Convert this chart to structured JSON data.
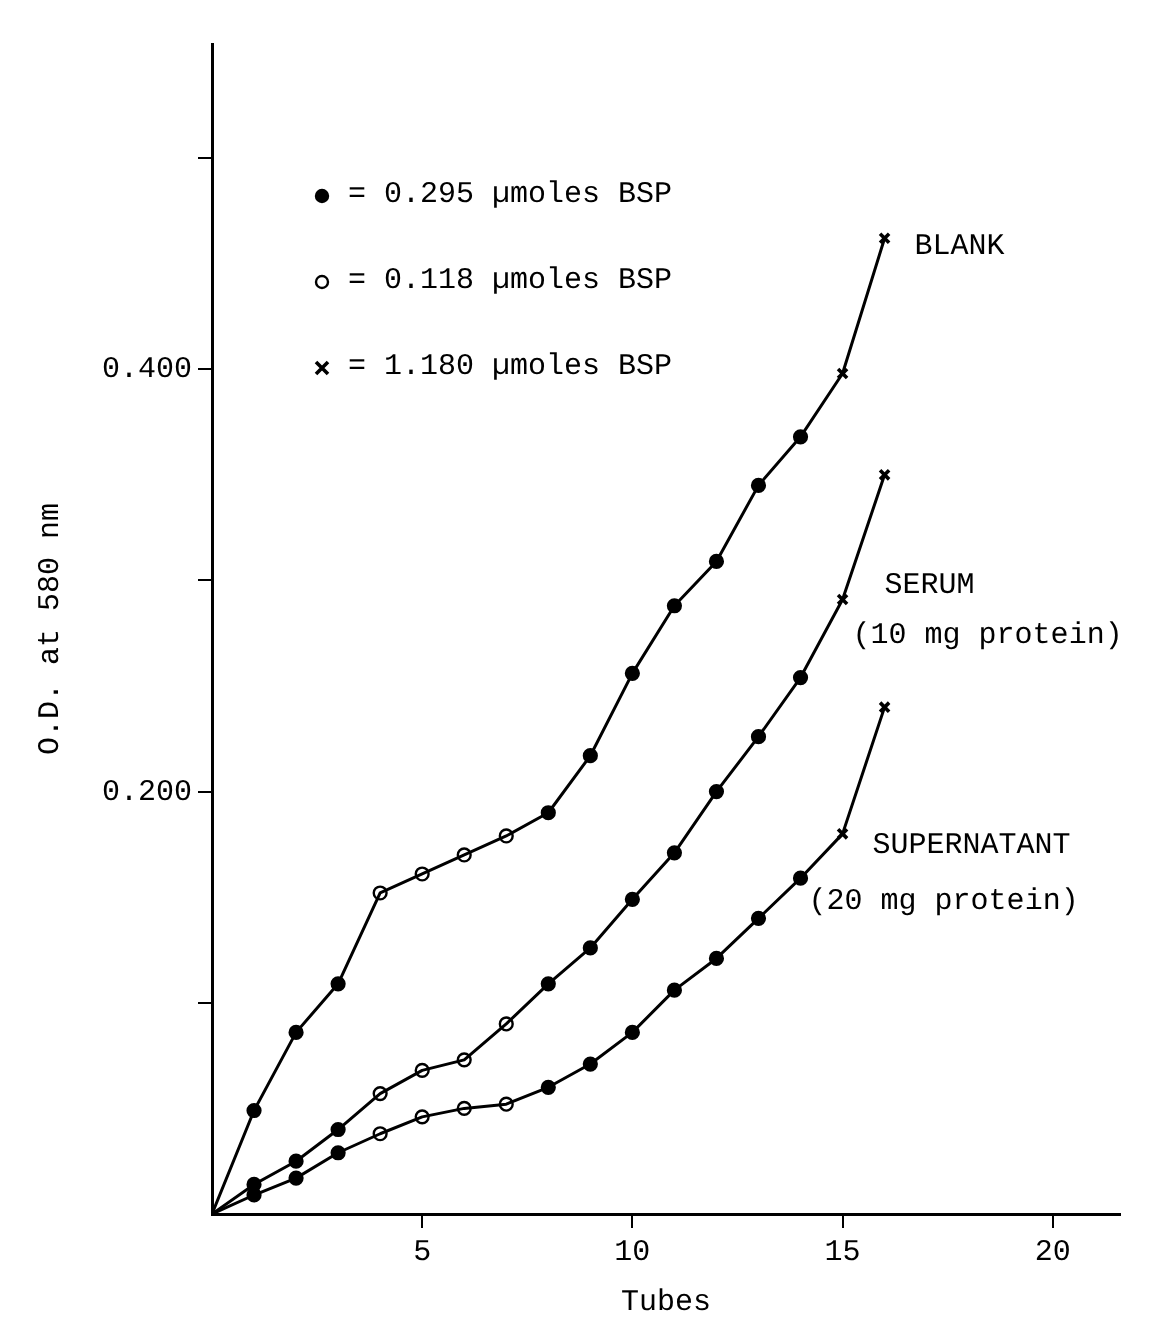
{
  "chart_data": {
    "type": "line",
    "xlabel": "Tubes",
    "ylabel": "O.D. at 580 nm",
    "x": [
      0,
      1,
      2,
      3,
      4,
      5,
      6,
      7,
      8,
      9,
      10,
      11,
      12,
      13,
      14,
      15,
      16
    ],
    "series": [
      {
        "name": "BLANK",
        "color": "#000000",
        "marker": "none",
        "values": [
          0,
          0.049,
          0.086,
          0.109,
          0.152,
          0.161,
          0.17,
          0.179,
          0.19,
          0.217,
          0.256,
          0.288,
          0.309,
          0.345,
          0.368,
          0.398,
          0.462
        ]
      },
      {
        "name": "SERUM\n(10 mg protein)",
        "color": "#000000",
        "marker": "none",
        "values": [
          0,
          0.014,
          0.025,
          0.04,
          0.057,
          0.068,
          0.073,
          0.09,
          0.109,
          0.126,
          0.149,
          0.171,
          0.2,
          0.226,
          0.254,
          0.291,
          0.35
        ]
      },
      {
        "name": "SUPERNATANT\n(20 mg protein)",
        "color": "#000000",
        "marker": "none",
        "values": [
          0,
          0.009,
          0.017,
          0.029,
          0.038,
          0.046,
          0.05,
          0.052,
          0.06,
          0.071,
          0.086,
          0.106,
          0.121,
          0.14,
          0.159,
          0.18,
          0.24
        ]
      },
      {
        "type": "scatter",
        "name": "= 0.295 µmoles BSP",
        "color": "#000000",
        "marker": "circle",
        "x": [
          1,
          2,
          3,
          8,
          9,
          10,
          11,
          12,
          13,
          14,
          1,
          2,
          3,
          8,
          9,
          10,
          11,
          12,
          13,
          14,
          1,
          2,
          3,
          8,
          9,
          10,
          11,
          12,
          13,
          14
        ],
        "values": [
          0.049,
          0.086,
          0.109,
          0.19,
          0.217,
          0.256,
          0.288,
          0.309,
          0.345,
          0.368,
          0.014,
          0.025,
          0.04,
          0.109,
          0.126,
          0.149,
          0.171,
          0.2,
          0.226,
          0.254,
          0.009,
          0.017,
          0.029,
          0.06,
          0.071,
          0.086,
          0.106,
          0.121,
          0.14,
          0.159
        ]
      },
      {
        "type": "scatter",
        "name": "= 0.118 µmoles BSP",
        "color": "#ffffff",
        "marker": "circle",
        "x": [
          4,
          5,
          6,
          7,
          4,
          5,
          6,
          7,
          4,
          5,
          6,
          7
        ],
        "values": [
          0.152,
          0.161,
          0.17,
          0.179,
          0.057,
          0.068,
          0.073,
          0.09,
          0.038,
          0.046,
          0.05,
          0.052
        ]
      },
      {
        "type": "scatter",
        "name": "= 1.180 µmoles BSP",
        "color": "#000000",
        "marker": "cross",
        "x": [
          15,
          16,
          15,
          16,
          15,
          16
        ],
        "values": [
          0.398,
          0.462,
          0.291,
          0.35,
          0.18,
          0.24
        ]
      }
    ],
    "xlim": [
      0,
      21.6
    ],
    "xticks": [
      5,
      10,
      15,
      20
    ],
    "ylim": [
      0,
      0.554
    ],
    "yticks": [
      {
        "value": 0.1,
        "label": null
      },
      {
        "value": 0.2,
        "label": "0.200"
      },
      {
        "value": 0.3,
        "label": null
      },
      {
        "value": 0.4,
        "label": "0.400"
      },
      {
        "value": 0.5,
        "label": null
      }
    ],
    "grid": false,
    "legend": "top left",
    "line_style": "solid"
  }
}
